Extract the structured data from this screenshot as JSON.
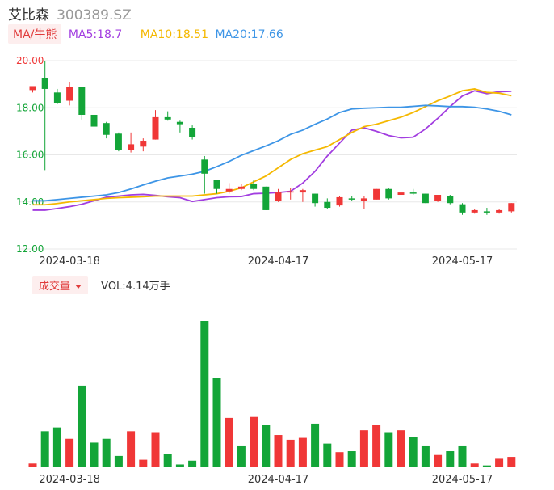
{
  "header": {
    "name": "艾比森",
    "code": "300389.SZ"
  },
  "ma_legend": {
    "toggle_label": "MA/牛熊",
    "items": [
      {
        "label": "MA5:18.7",
        "color": "#a23ee0"
      },
      {
        "label": "MA10:18.51",
        "color": "#f5b800"
      },
      {
        "label": "MA20:17.66",
        "color": "#3d95e6"
      }
    ]
  },
  "volume_legend": {
    "toggle_label": "成交量",
    "value_label": "VOL:4.14万手"
  },
  "colors": {
    "up": "#f03737",
    "down": "#13a538",
    "grid": "#e8e8e8",
    "y_label": "#13a538",
    "y_label_top": "#f03737"
  },
  "chart_data": [
    {
      "type": "candlestick",
      "y_ticks": [
        20.0,
        18.0,
        16.0,
        14.0,
        12.0
      ],
      "y_tick_labels": [
        "20.00",
        "18.00",
        "16.00",
        "14.00",
        "12.00"
      ],
      "ylim": [
        12.0,
        20.0
      ],
      "x_tick_labels": [
        {
          "index": 3,
          "label": "2024-03-18"
        },
        {
          "index": 20,
          "label": "2024-04-17"
        },
        {
          "index": 35,
          "label": "2024-05-17"
        }
      ],
      "candles": [
        {
          "o": 18.75,
          "h": 18.92,
          "l": 18.65,
          "c": 18.92
        },
        {
          "o": 19.25,
          "h": 20.0,
          "l": 15.35,
          "c": 18.8
        },
        {
          "o": 18.65,
          "h": 18.8,
          "l": 18.15,
          "c": 18.2
        },
        {
          "o": 18.3,
          "h": 19.1,
          "l": 18.1,
          "c": 18.9
        },
        {
          "o": 18.9,
          "h": 18.9,
          "l": 17.5,
          "c": 17.7
        },
        {
          "o": 17.7,
          "h": 18.1,
          "l": 17.15,
          "c": 17.2
        },
        {
          "o": 17.35,
          "h": 17.4,
          "l": 16.7,
          "c": 16.85
        },
        {
          "o": 16.9,
          "h": 16.95,
          "l": 16.15,
          "c": 16.2
        },
        {
          "o": 16.2,
          "h": 16.95,
          "l": 16.1,
          "c": 16.45
        },
        {
          "o": 16.35,
          "h": 16.7,
          "l": 16.15,
          "c": 16.6
        },
        {
          "o": 16.65,
          "h": 17.9,
          "l": 16.65,
          "c": 17.6
        },
        {
          "o": 17.6,
          "h": 17.85,
          "l": 17.45,
          "c": 17.5
        },
        {
          "o": 17.4,
          "h": 17.45,
          "l": 16.95,
          "c": 17.3
        },
        {
          "o": 17.15,
          "h": 17.25,
          "l": 16.65,
          "c": 16.75
        },
        {
          "o": 15.8,
          "h": 15.95,
          "l": 14.35,
          "c": 15.2
        },
        {
          "o": 14.95,
          "h": 14.95,
          "l": 14.35,
          "c": 14.55
        },
        {
          "o": 14.45,
          "h": 14.8,
          "l": 14.35,
          "c": 14.55
        },
        {
          "o": 14.55,
          "h": 14.75,
          "l": 14.5,
          "c": 14.65
        },
        {
          "o": 14.75,
          "h": 14.95,
          "l": 14.5,
          "c": 14.55
        },
        {
          "o": 14.65,
          "h": 14.65,
          "l": 13.65,
          "c": 13.65
        },
        {
          "o": 14.05,
          "h": 14.55,
          "l": 14.0,
          "c": 14.4
        },
        {
          "o": 14.4,
          "h": 14.6,
          "l": 14.1,
          "c": 14.45
        },
        {
          "o": 14.4,
          "h": 14.55,
          "l": 14.0,
          "c": 14.5
        },
        {
          "o": 14.35,
          "h": 14.35,
          "l": 13.8,
          "c": 13.95
        },
        {
          "o": 14.0,
          "h": 14.15,
          "l": 13.7,
          "c": 13.75
        },
        {
          "o": 13.85,
          "h": 14.25,
          "l": 13.8,
          "c": 14.2
        },
        {
          "o": 14.15,
          "h": 14.25,
          "l": 14.05,
          "c": 14.1
        },
        {
          "o": 14.05,
          "h": 14.25,
          "l": 13.7,
          "c": 14.15
        },
        {
          "o": 14.1,
          "h": 14.55,
          "l": 14.1,
          "c": 14.55
        },
        {
          "o": 14.55,
          "h": 14.6,
          "l": 14.1,
          "c": 14.15
        },
        {
          "o": 14.3,
          "h": 14.45,
          "l": 14.25,
          "c": 14.4
        },
        {
          "o": 14.4,
          "h": 14.55,
          "l": 14.3,
          "c": 14.35
        },
        {
          "o": 14.35,
          "h": 14.35,
          "l": 13.95,
          "c": 13.95
        },
        {
          "o": 14.05,
          "h": 14.3,
          "l": 14.0,
          "c": 14.3
        },
        {
          "o": 14.25,
          "h": 14.3,
          "l": 13.9,
          "c": 13.95
        },
        {
          "o": 13.9,
          "h": 13.95,
          "l": 13.45,
          "c": 13.55
        },
        {
          "o": 13.55,
          "h": 13.7,
          "l": 13.5,
          "c": 13.65
        },
        {
          "o": 13.6,
          "h": 13.75,
          "l": 13.45,
          "c": 13.55
        },
        {
          "o": 13.55,
          "h": 13.7,
          "l": 13.5,
          "c": 13.65
        },
        {
          "o": 13.6,
          "h": 13.95,
          "l": 13.55,
          "c": 13.95
        }
      ],
      "series": [
        {
          "name": "MA5",
          "color": "#a23ee0",
          "values": [
            13.65,
            13.65,
            13.72,
            13.8,
            13.9,
            14.05,
            14.2,
            14.25,
            14.3,
            14.32,
            14.28,
            14.22,
            14.18,
            14.02,
            14.1,
            14.18,
            14.22,
            14.23,
            14.35,
            14.37,
            14.4,
            14.45,
            14.8,
            15.3,
            15.95,
            16.5,
            17.05,
            17.15,
            17.0,
            16.82,
            16.72,
            16.75,
            17.1,
            17.55,
            18.05,
            18.5,
            18.72,
            18.6,
            18.68,
            18.7
          ]
        },
        {
          "name": "MA10",
          "color": "#f5b800",
          "values": [
            13.88,
            13.88,
            13.93,
            14.0,
            14.05,
            14.1,
            14.15,
            14.18,
            14.2,
            14.22,
            14.25,
            14.25,
            14.25,
            14.25,
            14.3,
            14.35,
            14.45,
            14.6,
            14.85,
            15.1,
            15.45,
            15.8,
            16.05,
            16.2,
            16.35,
            16.65,
            16.95,
            17.2,
            17.3,
            17.45,
            17.6,
            17.8,
            18.05,
            18.3,
            18.5,
            18.72,
            18.8,
            18.65,
            18.62,
            18.51
          ]
        },
        {
          "name": "MA20",
          "color": "#3d95e6",
          "values": [
            14.05,
            14.05,
            14.1,
            14.15,
            14.2,
            14.25,
            14.3,
            14.4,
            14.55,
            14.72,
            14.88,
            15.02,
            15.1,
            15.18,
            15.3,
            15.5,
            15.72,
            15.98,
            16.18,
            16.38,
            16.6,
            16.87,
            17.05,
            17.3,
            17.52,
            17.8,
            17.95,
            17.98,
            18.0,
            18.02,
            18.02,
            18.06,
            18.1,
            18.08,
            18.05,
            18.05,
            18.02,
            17.95,
            17.85,
            17.7
          ]
        }
      ]
    },
    {
      "type": "bar",
      "name": "成交量",
      "x_tick_labels": [
        {
          "index": 3,
          "label": "2024-03-18"
        },
        {
          "index": 20,
          "label": "2024-04-17"
        },
        {
          "index": 35,
          "label": "2024-05-17"
        }
      ],
      "values": [
        2.0,
        19.0,
        21.0,
        15.0,
        43.0,
        13.0,
        15.0,
        6.0,
        19.0,
        4.0,
        18.5,
        7.0,
        1.5,
        3.5,
        77.0,
        47.0,
        26.0,
        11.5,
        26.5,
        22.5,
        17.0,
        14.5,
        15.5,
        23.0,
        12.5,
        8.0,
        8.5,
        19.5,
        22.5,
        18.5,
        19.5,
        16.0,
        11.5,
        6.5,
        8.5,
        11.5,
        2.0,
        1.0,
        4.5,
        5.5
      ],
      "directions": [
        "up",
        "down",
        "down",
        "up",
        "down",
        "down",
        "down",
        "down",
        "up",
        "up",
        "up",
        "down",
        "down",
        "down",
        "down",
        "down",
        "up",
        "down",
        "up",
        "down",
        "up",
        "up",
        "up",
        "down",
        "down",
        "up",
        "down",
        "up",
        "up",
        "down",
        "up",
        "down",
        "down",
        "up",
        "down",
        "down",
        "up",
        "down",
        "up",
        "up"
      ]
    }
  ]
}
